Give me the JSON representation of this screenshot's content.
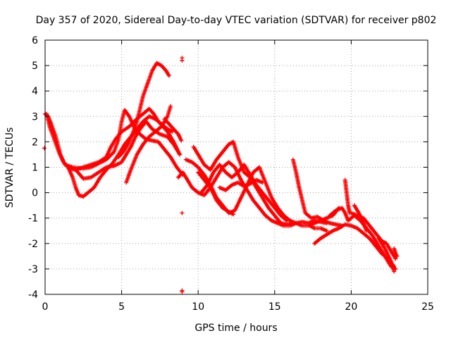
{
  "chart_data": {
    "type": "scatter",
    "title": "Day 357 of 2020, Sidereal Day-to-day VTEC variation (SDTVAR) for receiver p802",
    "xlabel": "GPS time / hours",
    "ylabel": "SDTVAR / TECUs",
    "xlim": [
      0,
      25
    ],
    "ylim": [
      -4,
      6
    ],
    "xticks": [
      "0",
      "5",
      "10",
      "15",
      "20",
      "25"
    ],
    "yticks": [
      "-4",
      "-3",
      "-2",
      "-1",
      "0",
      "1",
      "2",
      "3",
      "4",
      "5",
      "6"
    ],
    "grid": true,
    "marker": "+",
    "color": "#ff0000",
    "tracks": [
      [
        [
          0.0,
          3.1
        ],
        [
          0.2,
          3.0
        ],
        [
          0.4,
          2.7
        ],
        [
          0.7,
          2.2
        ],
        [
          1.0,
          1.5
        ],
        [
          1.3,
          1.1
        ],
        [
          1.8,
          1.0
        ],
        [
          2.5,
          0.95
        ],
        [
          3.0,
          1.0
        ],
        [
          3.5,
          1.15
        ],
        [
          4.0,
          1.3
        ],
        [
          4.5,
          1.6
        ],
        [
          4.8,
          2.1
        ],
        [
          5.0,
          2.8
        ],
        [
          5.2,
          3.25
        ],
        [
          5.5,
          3.0
        ],
        [
          5.8,
          2.6
        ],
        [
          6.2,
          2.3
        ],
        [
          6.6,
          2.1
        ],
        [
          7.0,
          2.05
        ],
        [
          7.4,
          2.0
        ],
        [
          7.8,
          1.7
        ],
        [
          8.2,
          1.4
        ],
        [
          8.6,
          1.0
        ],
        [
          9.0,
          0.7
        ]
      ],
      [
        [
          0.1,
          3.1
        ],
        [
          0.3,
          2.6
        ],
        [
          0.6,
          2.1
        ],
        [
          0.9,
          1.6
        ],
        [
          1.2,
          1.2
        ],
        [
          1.6,
          0.95
        ],
        [
          2.0,
          0.9
        ],
        [
          2.5,
          1.0
        ],
        [
          3.0,
          1.1
        ],
        [
          3.5,
          1.2
        ],
        [
          4.0,
          1.4
        ],
        [
          4.3,
          1.8
        ],
        [
          4.6,
          2.1
        ],
        [
          5.0,
          2.4
        ],
        [
          5.5,
          2.6
        ],
        [
          6.0,
          2.9
        ],
        [
          6.4,
          3.1
        ],
        [
          6.8,
          3.3
        ],
        [
          7.1,
          3.1
        ],
        [
          7.4,
          2.8
        ],
        [
          7.7,
          2.6
        ],
        [
          8.0,
          2.4
        ],
        [
          8.4,
          2.0
        ],
        [
          8.8,
          1.5
        ]
      ],
      [
        [
          1.5,
          1.0
        ],
        [
          1.8,
          0.6
        ],
        [
          2.0,
          0.2
        ],
        [
          2.2,
          -0.1
        ],
        [
          2.5,
          -0.15
        ],
        [
          2.8,
          0.0
        ],
        [
          3.2,
          0.2
        ],
        [
          3.6,
          0.6
        ],
        [
          4.0,
          0.9
        ],
        [
          4.4,
          1.15
        ],
        [
          4.8,
          1.5
        ],
        [
          5.2,
          1.9
        ],
        [
          5.6,
          2.2
        ],
        [
          6.0,
          2.5
        ],
        [
          6.4,
          2.8
        ],
        [
          6.8,
          3.0
        ],
        [
          7.2,
          2.9
        ],
        [
          7.6,
          2.7
        ],
        [
          8.0,
          2.5
        ],
        [
          8.3,
          2.4
        ]
      ],
      [
        [
          2.0,
          0.9
        ],
        [
          2.5,
          0.55
        ],
        [
          3.0,
          0.6
        ],
        [
          3.5,
          0.8
        ],
        [
          4.0,
          1.0
        ],
        [
          4.5,
          1.05
        ],
        [
          5.0,
          1.2
        ],
        [
          5.3,
          1.5
        ],
        [
          5.6,
          1.8
        ],
        [
          5.9,
          2.2
        ],
        [
          6.2,
          2.5
        ],
        [
          6.6,
          2.8
        ],
        [
          7.0,
          2.5
        ],
        [
          7.5,
          2.3
        ],
        [
          8.0,
          2.2
        ],
        [
          8.4,
          1.9
        ],
        [
          8.8,
          1.5
        ]
      ],
      [
        [
          4.8,
          1.4
        ],
        [
          5.1,
          1.6
        ],
        [
          5.4,
          1.9
        ],
        [
          5.7,
          2.3
        ],
        [
          6.0,
          2.8
        ],
        [
          6.2,
          3.3
        ],
        [
          6.4,
          3.8
        ],
        [
          6.7,
          4.3
        ],
        [
          7.0,
          4.8
        ],
        [
          7.3,
          5.1
        ],
        [
          7.6,
          5.0
        ],
        [
          7.9,
          4.8
        ],
        [
          8.1,
          4.6
        ]
      ],
      [
        [
          5.3,
          0.4
        ],
        [
          5.6,
          0.9
        ],
        [
          6.0,
          1.5
        ],
        [
          6.4,
          1.9
        ],
        [
          6.8,
          2.2
        ],
        [
          7.2,
          2.4
        ],
        [
          7.6,
          2.6
        ],
        [
          8.0,
          3.0
        ],
        [
          8.2,
          3.4
        ]
      ],
      [
        [
          7.8,
          2.9
        ],
        [
          8.1,
          2.7
        ],
        [
          8.4,
          2.5
        ],
        [
          8.7,
          2.3
        ],
        [
          8.9,
          2.05
        ]
      ],
      [
        [
          8.7,
          0.6
        ],
        [
          9.0,
          0.8
        ],
        [
          9.3,
          0.5
        ],
        [
          9.6,
          0.2
        ],
        [
          10.0,
          0.0
        ],
        [
          10.4,
          -0.1
        ],
        [
          10.8,
          0.2
        ],
        [
          11.2,
          0.6
        ],
        [
          11.6,
          1.0
        ],
        [
          12.0,
          1.2
        ],
        [
          12.4,
          1.0
        ],
        [
          12.8,
          0.5
        ],
        [
          13.2,
          0.1
        ],
        [
          13.6,
          -0.3
        ],
        [
          14.0,
          -0.6
        ],
        [
          14.4,
          -0.9
        ],
        [
          14.8,
          -1.1
        ],
        [
          15.2,
          -1.2
        ],
        [
          15.6,
          -1.3
        ],
        [
          16.0,
          -1.3
        ],
        [
          16.4,
          -1.2
        ],
        [
          16.8,
          -1.15
        ],
        [
          17.2,
          -1.2
        ],
        [
          17.6,
          -1.1
        ],
        [
          18.0,
          -1.15
        ],
        [
          18.4,
          -1.2
        ]
      ],
      [
        [
          9.2,
          1.3
        ],
        [
          9.6,
          1.2
        ],
        [
          10.0,
          1.0
        ],
        [
          10.4,
          0.7
        ],
        [
          10.8,
          0.3
        ],
        [
          11.2,
          -0.2
        ],
        [
          11.6,
          -0.5
        ],
        [
          12.0,
          -0.8
        ],
        [
          12.4,
          -0.7
        ],
        [
          12.8,
          -0.2
        ],
        [
          13.2,
          0.3
        ],
        [
          13.6,
          0.8
        ],
        [
          14.0,
          1.0
        ],
        [
          14.4,
          0.4
        ],
        [
          14.8,
          -0.2
        ],
        [
          15.2,
          -0.6
        ],
        [
          15.6,
          -0.9
        ],
        [
          16.0,
          -1.1
        ],
        [
          16.4,
          -1.2
        ],
        [
          16.8,
          -1.3
        ],
        [
          17.2,
          -1.3
        ],
        [
          17.6,
          -1.2
        ],
        [
          18.0,
          -1.1
        ],
        [
          18.4,
          -1.0
        ],
        [
          18.8,
          -0.9
        ],
        [
          19.2,
          -0.6
        ]
      ],
      [
        [
          9.7,
          1.8
        ],
        [
          10.0,
          1.5
        ],
        [
          10.4,
          1.1
        ],
        [
          10.8,
          0.9
        ],
        [
          11.2,
          1.3
        ],
        [
          11.6,
          1.6
        ],
        [
          12.0,
          1.9
        ],
        [
          12.3,
          2.0
        ],
        [
          12.6,
          1.4
        ],
        [
          13.0,
          0.8
        ],
        [
          13.4,
          0.6
        ],
        [
          13.8,
          0.2
        ],
        [
          14.2,
          -0.2
        ],
        [
          14.6,
          -0.6
        ],
        [
          15.0,
          -0.9
        ],
        [
          15.4,
          -1.2
        ],
        [
          15.8,
          -1.25
        ],
        [
          16.2,
          -1.2
        ]
      ],
      [
        [
          10.0,
          0.8
        ],
        [
          10.4,
          0.5
        ],
        [
          10.8,
          0.2
        ],
        [
          11.2,
          -0.3
        ],
        [
          11.6,
          -0.6
        ],
        [
          12.0,
          -0.75
        ],
        [
          12.3,
          -0.85
        ]
      ],
      [
        [
          10.2,
          0.0
        ],
        [
          10.6,
          0.3
        ],
        [
          11.0,
          0.8
        ],
        [
          11.4,
          1.1
        ],
        [
          11.8,
          0.8
        ],
        [
          12.2,
          0.6
        ],
        [
          12.6,
          0.8
        ],
        [
          13.0,
          1.1
        ],
        [
          13.4,
          0.7
        ],
        [
          13.8,
          0.3
        ],
        [
          14.2,
          0.0
        ],
        [
          14.6,
          -0.3
        ],
        [
          15.0,
          -0.6
        ],
        [
          15.4,
          -0.9
        ],
        [
          15.8,
          -1.1
        ]
      ],
      [
        [
          11.4,
          0.2
        ],
        [
          11.8,
          0.1
        ],
        [
          12.2,
          0.3
        ],
        [
          12.6,
          0.4
        ],
        [
          13.0,
          0.25
        ],
        [
          13.4,
          0.35
        ],
        [
          13.8,
          0.5
        ],
        [
          14.2,
          0.4
        ]
      ],
      [
        [
          16.2,
          1.3
        ],
        [
          16.4,
          0.8
        ],
        [
          16.6,
          0.2
        ],
        [
          16.8,
          -0.3
        ],
        [
          17.0,
          -0.8
        ],
        [
          17.4,
          -1.0
        ],
        [
          17.8,
          -0.95
        ],
        [
          18.2,
          -1.1
        ],
        [
          18.6,
          -1.2
        ],
        [
          19.0,
          -1.25
        ],
        [
          19.4,
          -1.3
        ]
      ],
      [
        [
          17.3,
          -1.3
        ],
        [
          17.6,
          -1.4
        ],
        [
          18.0,
          -1.4
        ],
        [
          18.4,
          -1.5
        ]
      ],
      [
        [
          17.6,
          -2.0
        ],
        [
          18.0,
          -1.8
        ],
        [
          18.4,
          -1.65
        ],
        [
          18.8,
          -1.5
        ],
        [
          19.2,
          -1.4
        ],
        [
          19.6,
          -1.25
        ],
        [
          20.0,
          -1.3
        ],
        [
          20.4,
          -1.4
        ],
        [
          20.8,
          -1.6
        ],
        [
          21.2,
          -1.8
        ],
        [
          21.6,
          -2.1
        ],
        [
          22.0,
          -2.4
        ],
        [
          22.4,
          -2.6
        ],
        [
          22.8,
          -2.9
        ]
      ],
      [
        [
          18.6,
          -0.9
        ],
        [
          19.0,
          -0.7
        ],
        [
          19.4,
          -0.6
        ],
        [
          19.6,
          -0.8
        ],
        [
          19.8,
          -1.1
        ],
        [
          20.2,
          -0.9
        ],
        [
          20.6,
          -1.1
        ],
        [
          21.0,
          -1.4
        ],
        [
          21.4,
          -1.7
        ],
        [
          21.8,
          -2.1
        ],
        [
          22.2,
          -2.5
        ],
        [
          22.6,
          -2.9
        ],
        [
          22.9,
          -3.0
        ]
      ],
      [
        [
          19.6,
          0.5
        ],
        [
          19.7,
          0.0
        ],
        [
          19.8,
          -0.5
        ],
        [
          19.9,
          -0.8
        ]
      ],
      [
        [
          20.0,
          -0.8
        ],
        [
          20.4,
          -0.9
        ],
        [
          20.8,
          -1.0
        ],
        [
          21.2,
          -1.3
        ],
        [
          21.6,
          -1.6
        ],
        [
          22.0,
          -1.9
        ],
        [
          22.3,
          -2.0
        ],
        [
          22.6,
          -2.3
        ],
        [
          22.9,
          -2.6
        ]
      ],
      [
        [
          21.8,
          -1.8
        ],
        [
          22.2,
          -2.2
        ],
        [
          22.6,
          -2.7
        ],
        [
          22.8,
          -3.1
        ]
      ],
      [
        [
          22.8,
          -2.2
        ],
        [
          22.9,
          -2.4
        ],
        [
          23.0,
          -2.5
        ]
      ],
      [
        [
          20.2,
          -0.5
        ],
        [
          20.5,
          -0.8
        ],
        [
          20.8,
          -1.2
        ],
        [
          21.0,
          -1.5
        ]
      ]
    ],
    "outliers": [
      [
        -0.05,
        1.75
      ],
      [
        8.95,
        5.3
      ],
      [
        8.95,
        5.2
      ],
      [
        8.95,
        -0.8
      ],
      [
        8.95,
        -3.85
      ],
      [
        8.95,
        -3.9
      ]
    ]
  }
}
